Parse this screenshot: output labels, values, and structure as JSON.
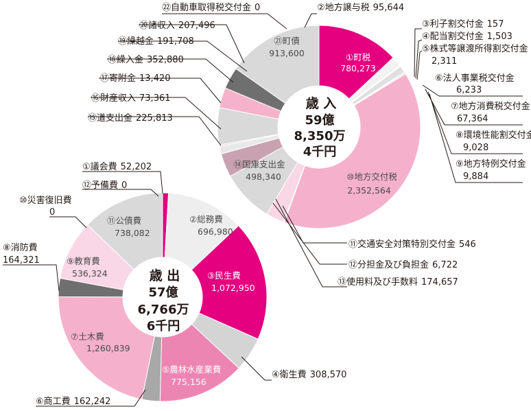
{
  "chart_data": [
    {
      "type": "pie",
      "title": "歳 入",
      "total_lines": [
        "59億",
        "8,350万",
        "4千円"
      ],
      "slices": [
        {
          "label": "①町税",
          "value": 780273,
          "display": "780,273",
          "color": "#e4007f"
        },
        {
          "label": "②地方譲与税",
          "value": 95644,
          "display": "95,644",
          "color": "#f2f2f2"
        },
        {
          "label": "③利子割交付金",
          "value": 157,
          "display": "157",
          "color": "#e4007f"
        },
        {
          "label": "④配当割交付金",
          "value": 1503,
          "display": "1,503",
          "color": "#ec6ea0"
        },
        {
          "label": "⑤株式等譲渡所得割交付金",
          "value": 2311,
          "display": "2,311",
          "color": "#f4a0c0"
        },
        {
          "label": "⑥法人事業税交付金",
          "value": 6233,
          "display": "6,233",
          "color": "#e4007f"
        },
        {
          "label": "⑦地方消費税交付金",
          "value": 67364,
          "display": "67,364",
          "color": "#e0e0e0"
        },
        {
          "label": "⑧環境性能割交付金",
          "value": 9028,
          "display": "9,028",
          "color": "#f8cfe0"
        },
        {
          "label": "⑨地方特例交付金",
          "value": 9884,
          "display": "9,884",
          "color": "#c0c0c0"
        },
        {
          "label": "⑩地方交付税",
          "value": 2352564,
          "display": "2,352,564",
          "color": "#f5b1cc"
        },
        {
          "label": "⑪交通安全対策特別交付金",
          "value": 546,
          "display": "546",
          "color": "#f5b1cc"
        },
        {
          "label": "⑫分担金及び負担金",
          "value": 6722,
          "display": "6,722",
          "color": "#eeeeee"
        },
        {
          "label": "⑬使用料及び手数料",
          "value": 174657,
          "display": "174,657",
          "color": "#fad7e4"
        },
        {
          "label": "⑭国庫支出金",
          "value": 498340,
          "display": "498,340",
          "color": "#d9d9d9"
        },
        {
          "label": "⑮道支出金",
          "value": 225813,
          "display": "225,813",
          "color": "#c9a1b1"
        },
        {
          "label": "⑯財産収入",
          "value": 73361,
          "display": "73,361",
          "color": "#e8e8e8"
        },
        {
          "label": "⑰寄附金",
          "value": 13420,
          "display": "13,420",
          "color": "#f2c2d4"
        },
        {
          "label": "⑱繰入金",
          "value": 352880,
          "display": "352,880",
          "color": "#d9d9d9"
        },
        {
          "label": "⑲繰越金",
          "value": 191708,
          "display": "191,708",
          "color": "#f4b3ca"
        },
        {
          "label": "⑳諸収入",
          "value": 207496,
          "display": "207,496",
          "color": "#6f6f6f"
        },
        {
          "label": "㉑町債",
          "value": 913600,
          "display": "913,600",
          "color": "#d9d9d9"
        },
        {
          "label": "㉒自動車取得税交付金",
          "value": 0,
          "display": "0",
          "color": "#d9d9d9"
        }
      ]
    },
    {
      "type": "pie",
      "title": "歳 出",
      "total_lines": [
        "57億",
        "6,766万",
        "6千円"
      ],
      "slices": [
        {
          "label": "①議会費",
          "value": 52202,
          "display": "52,202",
          "color": "#e4007f"
        },
        {
          "label": "②総務費",
          "value": 696980,
          "display": "696,980",
          "color": "#eeeeee"
        },
        {
          "label": "③民生費",
          "value": 1072950,
          "display": "1,072,950",
          "color": "#e4007f"
        },
        {
          "label": "④衛生費",
          "value": 308570,
          "display": "308,570",
          "color": "#d4d4d4"
        },
        {
          "label": "⑤農林水産業費",
          "value": 775156,
          "display": "775,156",
          "color": "#ed85b3"
        },
        {
          "label": "⑥商工費",
          "value": 162242,
          "display": "162,242",
          "color": "#a8a8a8"
        },
        {
          "label": "⑦土木費",
          "value": 1260839,
          "display": "1,260,839",
          "color": "#f5b1cc"
        },
        {
          "label": "⑧消防費",
          "value": 164321,
          "display": "164,321",
          "color": "#6f6f6f"
        },
        {
          "label": "⑨教育費",
          "value": 536324,
          "display": "536,324",
          "color": "#fad7e6"
        },
        {
          "label": "⑩災害復旧費",
          "value": 0,
          "display": "0",
          "color": "#d9d9d9"
        },
        {
          "label": "⑪公債費",
          "value": 738082,
          "display": "738,082",
          "color": "#d9d9d9"
        },
        {
          "label": "⑫予備費",
          "value": 0,
          "display": "0",
          "color": "#d9d9d9"
        }
      ]
    }
  ]
}
